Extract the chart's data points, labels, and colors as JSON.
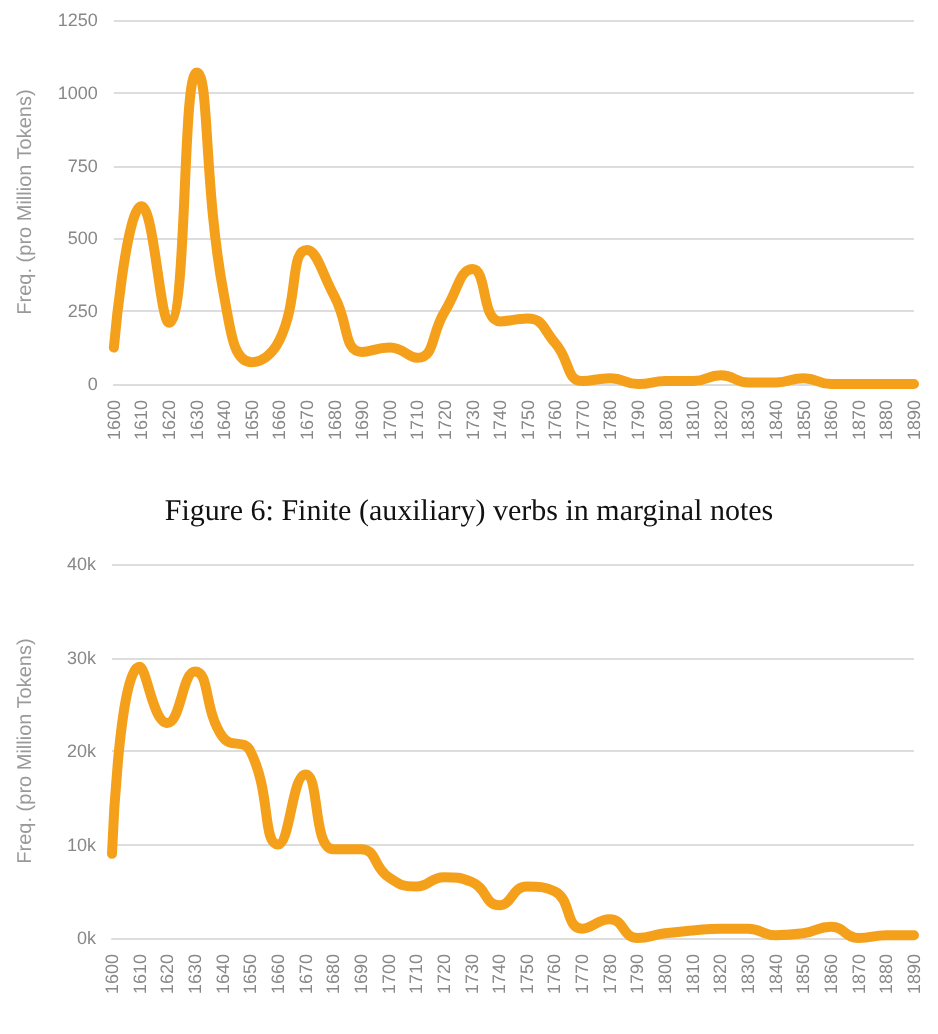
{
  "chart_data": [
    {
      "type": "line",
      "ylabel": "Freq. (pro Million Tokens)",
      "categories": [
        "1600",
        "1610",
        "1620",
        "1630",
        "1640",
        "1650",
        "1660",
        "1670",
        "1680",
        "1690",
        "1700",
        "1710",
        "1720",
        "1730",
        "1740",
        "1750",
        "1760",
        "1770",
        "1780",
        "1790",
        "1800",
        "1810",
        "1820",
        "1830",
        "1840",
        "1850",
        "1860",
        "1870",
        "1880",
        "1890"
      ],
      "series": [
        {
          "color": "#f5a01a",
          "values": [
            125,
            610,
            210,
            1070,
            300,
            75,
            150,
            460,
            300,
            110,
            125,
            90,
            250,
            395,
            215,
            225,
            140,
            10,
            20,
            0,
            10,
            10,
            30,
            5,
            5,
            20,
            0,
            0,
            0,
            0
          ]
        }
      ],
      "ylim": [
        0,
        1250
      ],
      "yticks": [
        0,
        250,
        500,
        750,
        1000,
        1250
      ],
      "grid": "y",
      "marker": "none",
      "annotations": [
        "Figure 6: Finite (auxiliary) verbs in marginal notes"
      ]
    },
    {
      "type": "line",
      "ylabel": "Freq. (pro Million Tokens)",
      "categories": [
        "1600",
        "1610",
        "1620",
        "1630",
        "1640",
        "1650",
        "1660",
        "1670",
        "1680",
        "1690",
        "1700",
        "1710",
        "1720",
        "1730",
        "1740",
        "1750",
        "1760",
        "1770",
        "1780",
        "1790",
        "1800",
        "1810",
        "1820",
        "1830",
        "1840",
        "1850",
        "1860",
        "1870",
        "1880",
        "1890"
      ],
      "series": [
        {
          "color": "#f5a01a",
          "values": [
            9000,
            29000,
            23000,
            28500,
            21500,
            20000,
            10000,
            17500,
            9500,
            9500,
            6500,
            5500,
            6500,
            6000,
            3500,
            5500,
            5000,
            1000,
            2000,
            0,
            500,
            800,
            1000,
            1000,
            300,
            500,
            1200,
            0,
            300,
            300
          ]
        }
      ],
      "ylim": [
        0,
        40000
      ],
      "yticks": [
        {
          "value": 0,
          "label": "0k"
        },
        {
          "value": 10000,
          "label": "10k"
        },
        {
          "value": 20000,
          "label": "20k"
        },
        {
          "value": 30000,
          "label": "30k"
        },
        {
          "value": 40000,
          "label": "40k"
        }
      ],
      "grid": "y",
      "marker": "none"
    }
  ]
}
